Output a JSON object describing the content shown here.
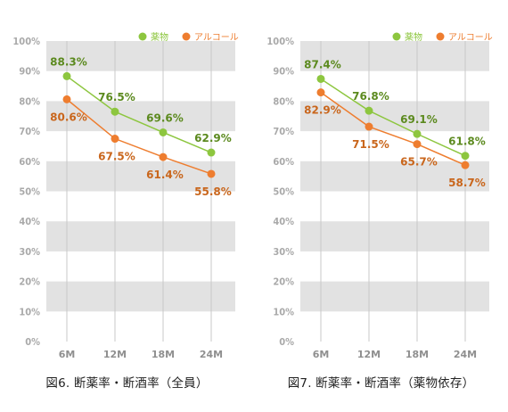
{
  "chart_data": [
    {
      "type": "line",
      "caption": "図6. 断薬率・断酒率（全員）",
      "categories": [
        "6M",
        "12M",
        "18M",
        "24M"
      ],
      "yticks": [
        "100%",
        "90%",
        "80%",
        "70%",
        "60%",
        "50%",
        "40%",
        "30%",
        "20%",
        "10%",
        "0%"
      ],
      "ylim": [
        0,
        100
      ],
      "legend_position": "top-right",
      "series": [
        {
          "name": "薬物",
          "color": "#8dc63f",
          "label_color": "#5c8a1f",
          "values": [
            88.3,
            76.5,
            69.6,
            62.9
          ],
          "labels": [
            "88.3%",
            "76.5%",
            "69.6%",
            "62.9%"
          ]
        },
        {
          "name": "アルコール",
          "color": "#ee7d2f",
          "label_color": "#c9661c",
          "values": [
            80.6,
            67.5,
            61.4,
            55.8
          ],
          "labels": [
            "80.6%",
            "67.5%",
            "61.4%",
            "55.8%"
          ]
        }
      ]
    },
    {
      "type": "line",
      "caption": "図7. 断薬率・断酒率（薬物依存）",
      "categories": [
        "6M",
        "12M",
        "18M",
        "24M"
      ],
      "yticks": [
        "100%",
        "90%",
        "80%",
        "70%",
        "60%",
        "50%",
        "40%",
        "30%",
        "20%",
        "10%",
        "0%"
      ],
      "ylim": [
        0,
        100
      ],
      "legend_position": "top-right",
      "series": [
        {
          "name": "薬物",
          "color": "#8dc63f",
          "label_color": "#5c8a1f",
          "values": [
            87.4,
            76.8,
            69.1,
            61.8
          ],
          "labels": [
            "87.4%",
            "76.8%",
            "69.1%",
            "61.8%"
          ]
        },
        {
          "name": "アルコール",
          "color": "#ee7d2f",
          "label_color": "#c9661c",
          "values": [
            82.9,
            71.5,
            65.7,
            58.7
          ],
          "labels": [
            "82.9%",
            "71.5%",
            "65.7%",
            "58.7%"
          ]
        }
      ]
    }
  ],
  "colors": {
    "band": "#e2e2e2",
    "gridline": "#c8c8c8",
    "tick": "#a9a9a9"
  }
}
